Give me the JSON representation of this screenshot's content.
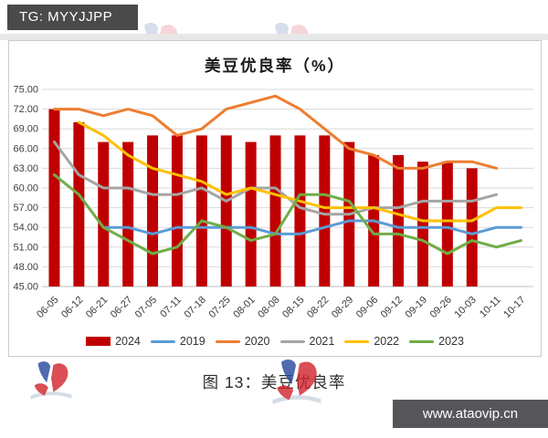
{
  "page": {
    "tg_badge": "TG: MYYJJPP",
    "caption": "图 13：美豆优良率",
    "site_badge": "www.ataovip.cn",
    "colors": {
      "tg_badge_bg": "#4a4a4a",
      "site_badge_bg": "#56565a",
      "bar_red": "#c00000",
      "grid": "#d9d9d9",
      "axis": "#bfbfbf",
      "chart_border": "#cccccc"
    }
  },
  "watermark_logo": {
    "name": "red-blue-pinwheel-logo",
    "blue": "#26479e",
    "red": "#d1222b",
    "swoosh": "#b8c4d6"
  },
  "chart_data": {
    "type": "bar",
    "subtype": "bar-line-combo",
    "title": "美豆优良率（%）",
    "xlabel": "",
    "ylabel": "",
    "grid": true,
    "legend_position": "bottom",
    "categories": [
      "06-05",
      "06-12",
      "06-21",
      "06-27",
      "07-05",
      "07-11",
      "07-18",
      "07-25",
      "08-01",
      "08-08",
      "08-15",
      "08-22",
      "08-29",
      "09-06",
      "09-12",
      "09-19",
      "09-26",
      "10-03",
      "10-11",
      "10-17"
    ],
    "y_axis": {
      "min": 45,
      "max": 75,
      "step": 3,
      "tick_labels": [
        "75.00",
        "72.00",
        "69.00",
        "66.00",
        "63.00",
        "60.00",
        "57.00",
        "54.00",
        "51.00",
        "48.00",
        "45.00"
      ]
    },
    "series": [
      {
        "name": "2024",
        "type": "bar",
        "color": "#c00000",
        "values": [
          72,
          70,
          67,
          67,
          68,
          68,
          68,
          68,
          67,
          68,
          68,
          68,
          67,
          65,
          65,
          64,
          64,
          63,
          null,
          null
        ]
      },
      {
        "name": "2019",
        "type": "line",
        "color": "#5b9bd5",
        "values": [
          null,
          null,
          54,
          54,
          53,
          54,
          54,
          54,
          54,
          53,
          53,
          54,
          55,
          55,
          54,
          54,
          54,
          53,
          54,
          54
        ]
      },
      {
        "name": "2020",
        "type": "line",
        "color": "#ed7d31",
        "values": [
          72,
          72,
          71,
          72,
          71,
          68,
          69,
          72,
          73,
          74,
          72,
          69,
          66,
          65,
          63,
          63,
          64,
          64,
          63,
          null
        ]
      },
      {
        "name": "2021",
        "type": "line",
        "color": "#a5a5a5",
        "values": [
          67,
          62,
          60,
          60,
          59,
          59,
          60,
          58,
          60,
          60,
          57,
          56,
          56,
          57,
          57,
          58,
          58,
          58,
          59,
          null
        ]
      },
      {
        "name": "2022",
        "type": "line",
        "color": "#ffc000",
        "values": [
          null,
          70,
          68,
          65,
          63,
          62,
          61,
          59,
          60,
          59,
          58,
          57,
          57,
          57,
          56,
          55,
          55,
          55,
          57,
          57
        ]
      },
      {
        "name": "2023",
        "type": "line",
        "color": "#70ad47",
        "values": [
          62,
          59,
          54,
          52,
          50,
          51,
          55,
          54,
          52,
          53,
          59,
          59,
          58,
          53,
          53,
          52,
          50,
          52,
          51,
          52
        ]
      }
    ]
  }
}
